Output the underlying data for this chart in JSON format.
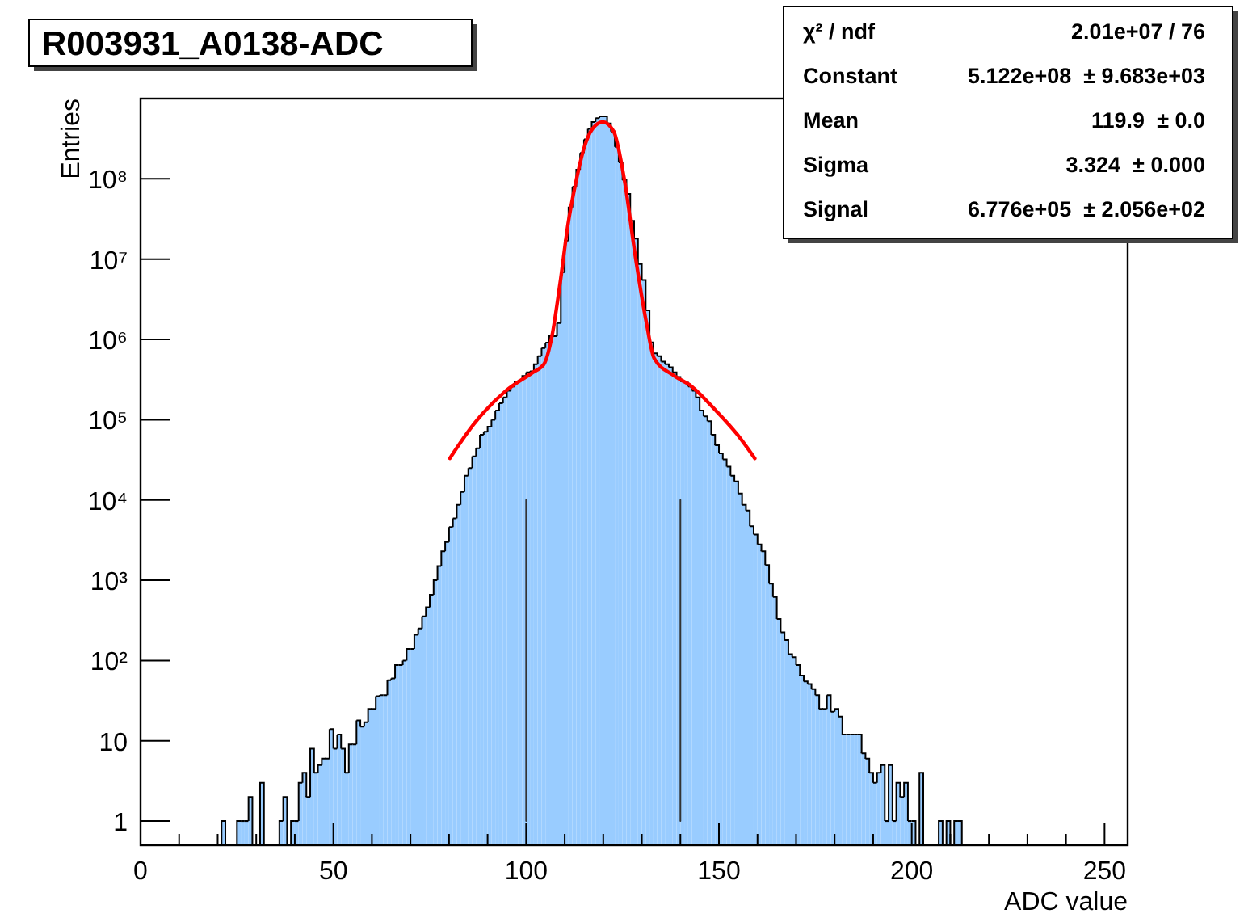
{
  "chart_data": {
    "type": "histogram",
    "title": "R003931_A0138-ADC",
    "xlabel": "ADC value",
    "ylabel": "Entries",
    "log": "y",
    "color": "#99ccff",
    "bins": [
      20,
      21,
      22,
      23,
      24,
      25,
      26,
      27,
      28,
      29,
      30,
      31,
      32,
      33,
      34,
      35,
      36,
      37,
      38,
      39,
      40,
      41,
      42,
      43,
      44,
      45,
      46,
      47,
      48,
      49,
      50,
      51,
      52,
      53,
      54,
      55,
      56,
      57,
      58,
      59,
      60,
      61,
      62,
      63,
      64,
      65,
      66,
      67,
      68,
      69,
      70,
      71,
      72,
      73,
      74,
      75,
      76,
      77,
      78,
      79,
      80,
      81,
      82,
      83,
      84,
      85,
      86,
      87,
      88,
      89,
      90,
      91,
      92,
      93,
      94,
      95,
      96,
      97,
      98,
      99,
      100,
      101,
      102,
      103,
      104,
      105,
      106,
      107,
      108,
      109,
      110,
      111,
      112,
      113,
      114,
      115,
      116,
      117,
      118,
      119,
      120,
      121,
      122,
      123,
      124,
      125,
      126,
      127,
      128,
      129,
      130,
      131,
      132,
      133,
      134,
      135,
      136,
      137,
      138,
      139,
      140,
      141,
      142,
      143,
      144,
      145,
      146,
      147,
      148,
      149,
      150,
      151,
      152,
      153,
      154,
      155,
      156,
      157,
      158,
      159,
      160,
      161,
      162,
      163,
      164,
      165,
      166,
      167,
      168,
      169,
      170,
      171,
      172,
      173,
      174,
      175,
      176,
      177,
      178,
      179,
      180,
      181,
      182,
      183,
      184,
      185,
      186,
      187,
      188,
      189,
      190,
      191,
      192,
      193,
      194,
      195,
      196,
      197,
      198,
      199,
      200,
      201,
      202,
      203,
      204,
      205,
      206,
      207,
      208,
      209,
      210,
      211,
      212,
      213
    ],
    "values": [
      null,
      1,
      null,
      null,
      null,
      1,
      1,
      1,
      2,
      null,
      null,
      3,
      null,
      null,
      null,
      null,
      1,
      2,
      null,
      1,
      1,
      3,
      4,
      2,
      8,
      4,
      5,
      6,
      6,
      14,
      8,
      12,
      8,
      4,
      9,
      9,
      18,
      15,
      17,
      25,
      25,
      36,
      37,
      37,
      57,
      60,
      88,
      88,
      100,
      140,
      140,
      210,
      250,
      355,
      460,
      660,
      1000,
      1500,
      2300,
      3000,
      4600,
      5900,
      8700,
      12600,
      20000,
      25000,
      35000,
      44000,
      65000,
      71000,
      82000,
      100000,
      130000,
      160000,
      190000,
      230000,
      260000,
      300000,
      310000,
      350000,
      390000,
      400000,
      490000,
      620000,
      780000,
      910000,
      1100000,
      1100000,
      1600000,
      6900000,
      17000000,
      44000000,
      80000000,
      130000000,
      210000000,
      310000000,
      420000000,
      510000000,
      570000000,
      600000000,
      600000000,
      490000000,
      390000000,
      250000000,
      160000000,
      96000000,
      65000000,
      30000000,
      18000000,
      8700000,
      5500000,
      2300000,
      920000,
      670000,
      620000,
      530000,
      490000,
      450000,
      390000,
      340000,
      300000,
      290000,
      260000,
      230000,
      190000,
      130000,
      110000,
      96000,
      65000,
      48000,
      38000,
      32000,
      26000,
      20000,
      17000,
      12000,
      8700,
      7400,
      4700,
      3700,
      2800,
      2300,
      1550,
      910,
      620,
      330,
      225,
      180,
      120,
      110,
      88,
      65,
      55,
      51,
      44,
      37,
      25,
      25,
      37,
      23,
      25,
      20,
      12,
      12,
      12,
      12,
      12,
      7,
      6,
      4,
      3,
      4,
      5,
      1,
      5,
      1,
      3,
      2,
      3,
      1,
      1,
      null,
      4,
      null,
      null,
      null,
      null,
      1,
      null,
      1,
      null,
      1,
      1
    ],
    "series": [
      {
        "type": "line",
        "color": "#ff0000",
        "x": [
          80.2,
          86.5,
          94.8,
          101.8,
          104.6,
          106.7,
          108.8,
          110.9,
          113,
          115.1,
          117.2,
          119.9,
          122.7,
          125.5,
          128.3,
          131.1,
          133.2,
          138.1,
          142.9,
          149.2,
          154.8,
          159.3
        ],
        "values": [
          33000,
          89000,
          230000,
          390000,
          490000,
          1100000,
          5000000,
          28000000,
          96000000,
          250000000,
          420000000,
          512000000,
          390000000,
          96000000,
          11000000,
          1700000,
          580000,
          360000,
          260000,
          130000,
          65000,
          33000
        ]
      },
      {
        "type": "line",
        "color": "#333333",
        "x": [
          100,
          100
        ],
        "values": [
          1,
          10000
        ]
      },
      {
        "type": "line",
        "color": "#333333",
        "x": [
          140,
          140
        ],
        "values": [
          1,
          10000
        ]
      }
    ],
    "xlim": [
      0,
      256
    ],
    "xticks": [
      0,
      {
        "value": 10,
        "label": null
      },
      {
        "value": 20,
        "label": null
      },
      {
        "value": 30,
        "label": null
      },
      {
        "value": 40,
        "label": null
      },
      50,
      {
        "value": 60,
        "label": null
      },
      {
        "value": 70,
        "label": null
      },
      {
        "value": 80,
        "label": null
      },
      {
        "value": 90,
        "label": null
      },
      100,
      {
        "value": 110,
        "label": null
      },
      {
        "value": 120,
        "label": null
      },
      {
        "value": 130,
        "label": null
      },
      {
        "value": 140,
        "label": null
      },
      150,
      {
        "value": 160,
        "label": null
      },
      {
        "value": 170,
        "label": null
      },
      {
        "value": 180,
        "label": null
      },
      {
        "value": 190,
        "label": null
      },
      200,
      {
        "value": 210,
        "label": null
      },
      {
        "value": 220,
        "label": null
      },
      {
        "value": 230,
        "label": null
      },
      {
        "value": 240,
        "label": null
      },
      250
    ],
    "ylim": [
      0.5,
      1000000000
    ],
    "yticks": [
      1,
      10,
      {
        "value": 100,
        "label": "10²"
      },
      {
        "value": 1000,
        "label": "10³"
      },
      {
        "value": 10000,
        "label": "10⁴"
      },
      {
        "value": 100000,
        "label": "10⁵"
      },
      {
        "value": 1000000,
        "label": "10⁶"
      },
      {
        "value": 10000000,
        "label": "10⁷"
      },
      {
        "value": 100000000,
        "label": "10⁸"
      }
    ],
    "annotations": [
      "χ² / ndf",
      "2.01e+07 / 76",
      "Constant",
      "5.122e+08  ± 9.683e+03",
      "Mean",
      "119.9  ± 0.0",
      "Sigma",
      "3.324  ± 0.000",
      "Signal",
      "6.776e+05  ± 2.056e+02"
    ]
  }
}
